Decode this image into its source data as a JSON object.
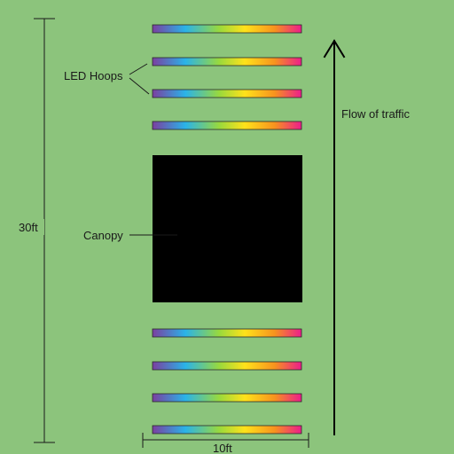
{
  "diagram": {
    "labels": {
      "led_hoops": "LED Hoops",
      "canopy": "Canopy",
      "flow": "Flow of traffic",
      "length": "30ft",
      "width": "10ft"
    },
    "colors": {
      "background": "#8cc47c",
      "canopy": "#000000",
      "lines": "#1a1a1a",
      "hoop_gradient": [
        "#7b3fa0",
        "#2ab3e8",
        "#9ad93c",
        "#ffe21a",
        "#f7931e",
        "#ec1c8c"
      ]
    },
    "hoops_before_canopy": 4,
    "hoops_after_canopy": 4,
    "hoops_labeled": 2
  }
}
